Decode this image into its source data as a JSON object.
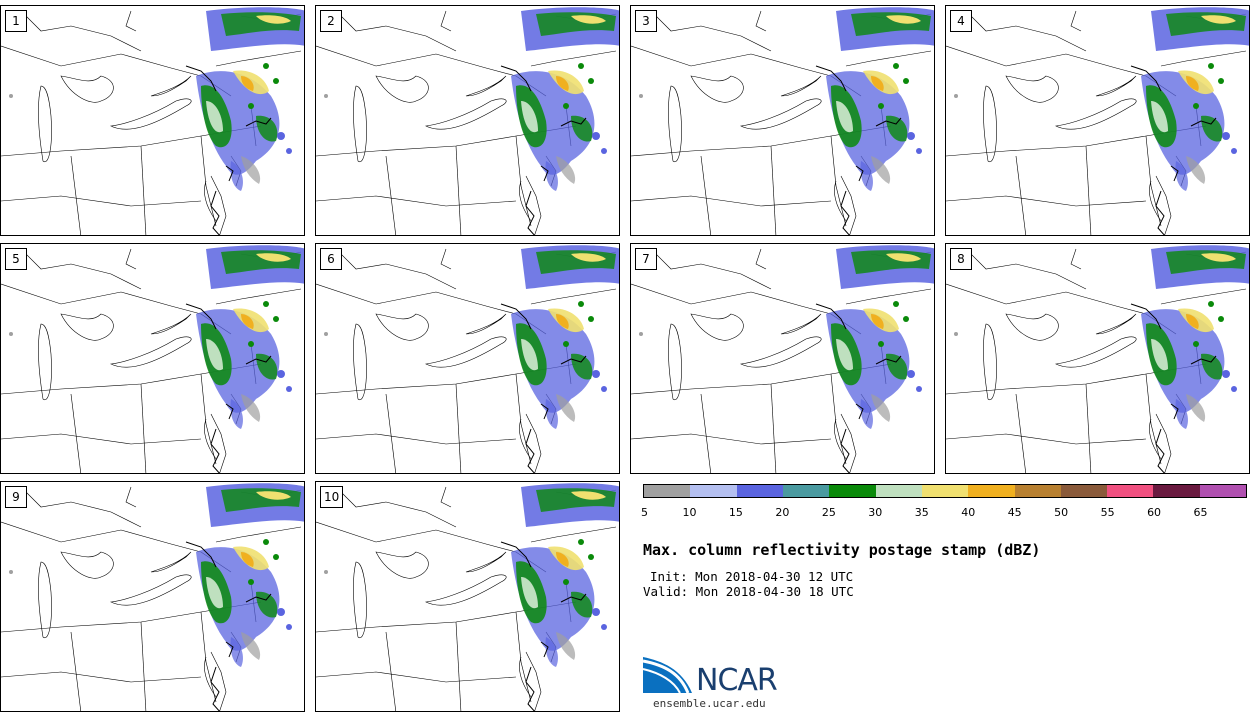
{
  "panels": [
    {
      "label": "1"
    },
    {
      "label": "2"
    },
    {
      "label": "3"
    },
    {
      "label": "4"
    },
    {
      "label": "5"
    },
    {
      "label": "6"
    },
    {
      "label": "7"
    },
    {
      "label": "8"
    },
    {
      "label": "9"
    },
    {
      "label": "10"
    }
  ],
  "colorbar": {
    "colors": [
      "#a0a0a0",
      "#b4bff0",
      "#5a64e0",
      "#4a9aa0",
      "#0a8a0a",
      "#bfe0bf",
      "#f0e070",
      "#f0b020",
      "#b88030",
      "#8a5a3a",
      "#f05080",
      "#6a1a40",
      "#b050b0"
    ],
    "ticks": [
      "5",
      "10",
      "15",
      "20",
      "25",
      "30",
      "35",
      "40",
      "45",
      "50",
      "55",
      "60",
      "65"
    ]
  },
  "title": "Max. column reflectivity postage stamp (dBZ)",
  "init": "Init: Mon 2018-04-30 12 UTC",
  "valid": "Valid: Mon 2018-04-30 18 UTC",
  "logo": {
    "name": "NCAR",
    "url": "ensemble.ucar.edu"
  }
}
